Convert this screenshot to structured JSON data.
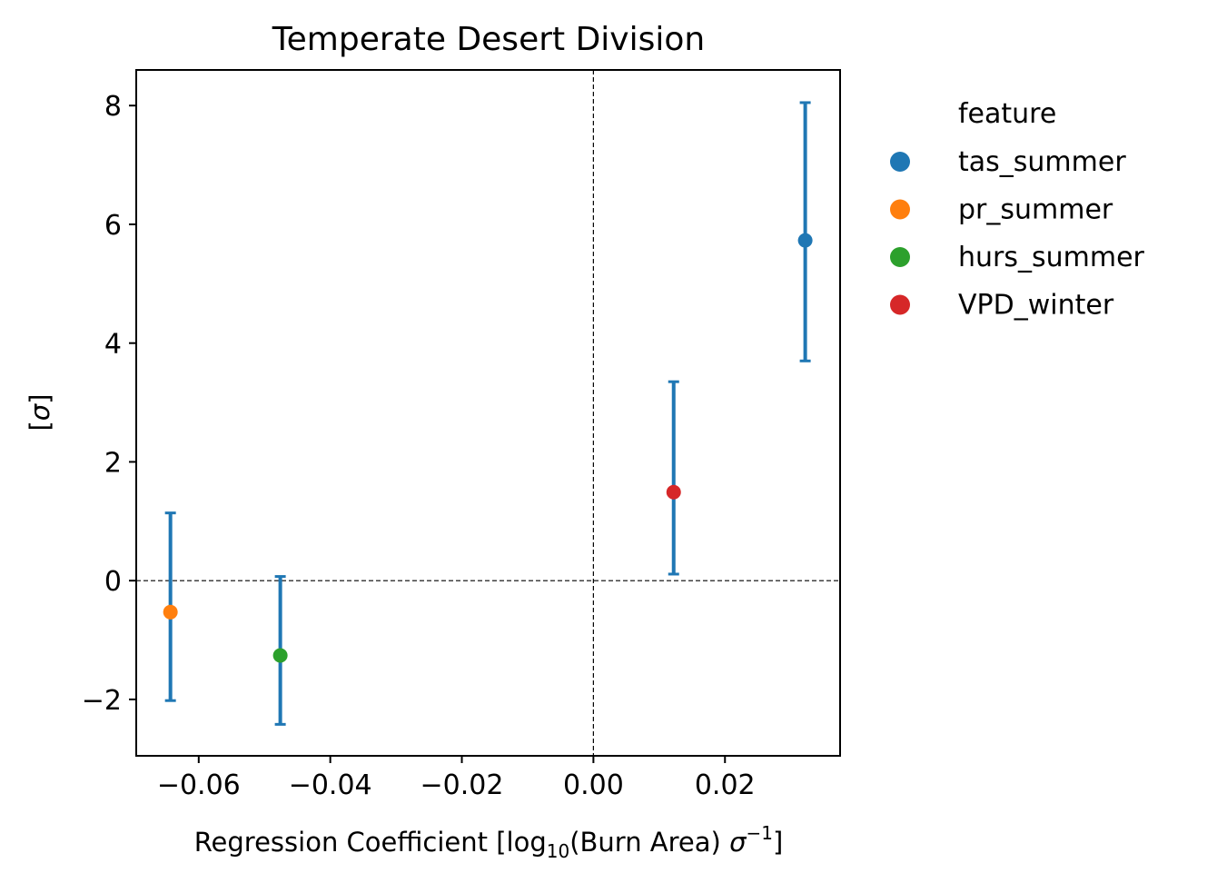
{
  "chart_data": {
    "type": "scatter",
    "title": "Temperate Desert Division",
    "xlabel": {
      "prefix": "Regression Coefficient [log",
      "sub": "10",
      "middle": "(Burn Area) ",
      "sigma": "σ",
      "sup": "−1",
      "suffix": "]"
    },
    "ylabel": {
      "open": "[",
      "sigma": "σ",
      "close": "]"
    },
    "xlim": [
      -0.0695,
      0.0375
    ],
    "ylim": [
      -2.95,
      8.6
    ],
    "xticks": [
      -0.06,
      -0.04,
      -0.02,
      0.0,
      0.02
    ],
    "xtick_labels": [
      "−0.06",
      "−0.04",
      "−0.02",
      "0.00",
      "0.02"
    ],
    "yticks": [
      -2,
      0,
      2,
      4,
      6,
      8
    ],
    "ytick_labels": [
      "−2",
      "0",
      "2",
      "4",
      "6",
      "8"
    ],
    "reference_lines": {
      "x": 0,
      "y": 0,
      "style": "dashed"
    },
    "legend": {
      "title": "feature",
      "placement": "outside-right-top"
    },
    "errorbar_color": "#1f77b4",
    "points": [
      {
        "name": "tas_summer",
        "x": 0.0322,
        "y": 5.73,
        "yerr_low": 3.7,
        "yerr_high": 8.05,
        "color": "#1f77b4"
      },
      {
        "name": "pr_summer",
        "x": -0.0643,
        "y": -0.53,
        "yerr_low": -2.02,
        "yerr_high": 1.14,
        "color": "#ff7f0e"
      },
      {
        "name": "hurs_summer",
        "x": -0.0476,
        "y": -1.26,
        "yerr_low": -2.42,
        "yerr_high": 0.07,
        "color": "#2ca02c"
      },
      {
        "name": "VPD_winter",
        "x": 0.0122,
        "y": 1.49,
        "yerr_low": 0.11,
        "yerr_high": 3.35,
        "color": "#d62728"
      }
    ]
  }
}
